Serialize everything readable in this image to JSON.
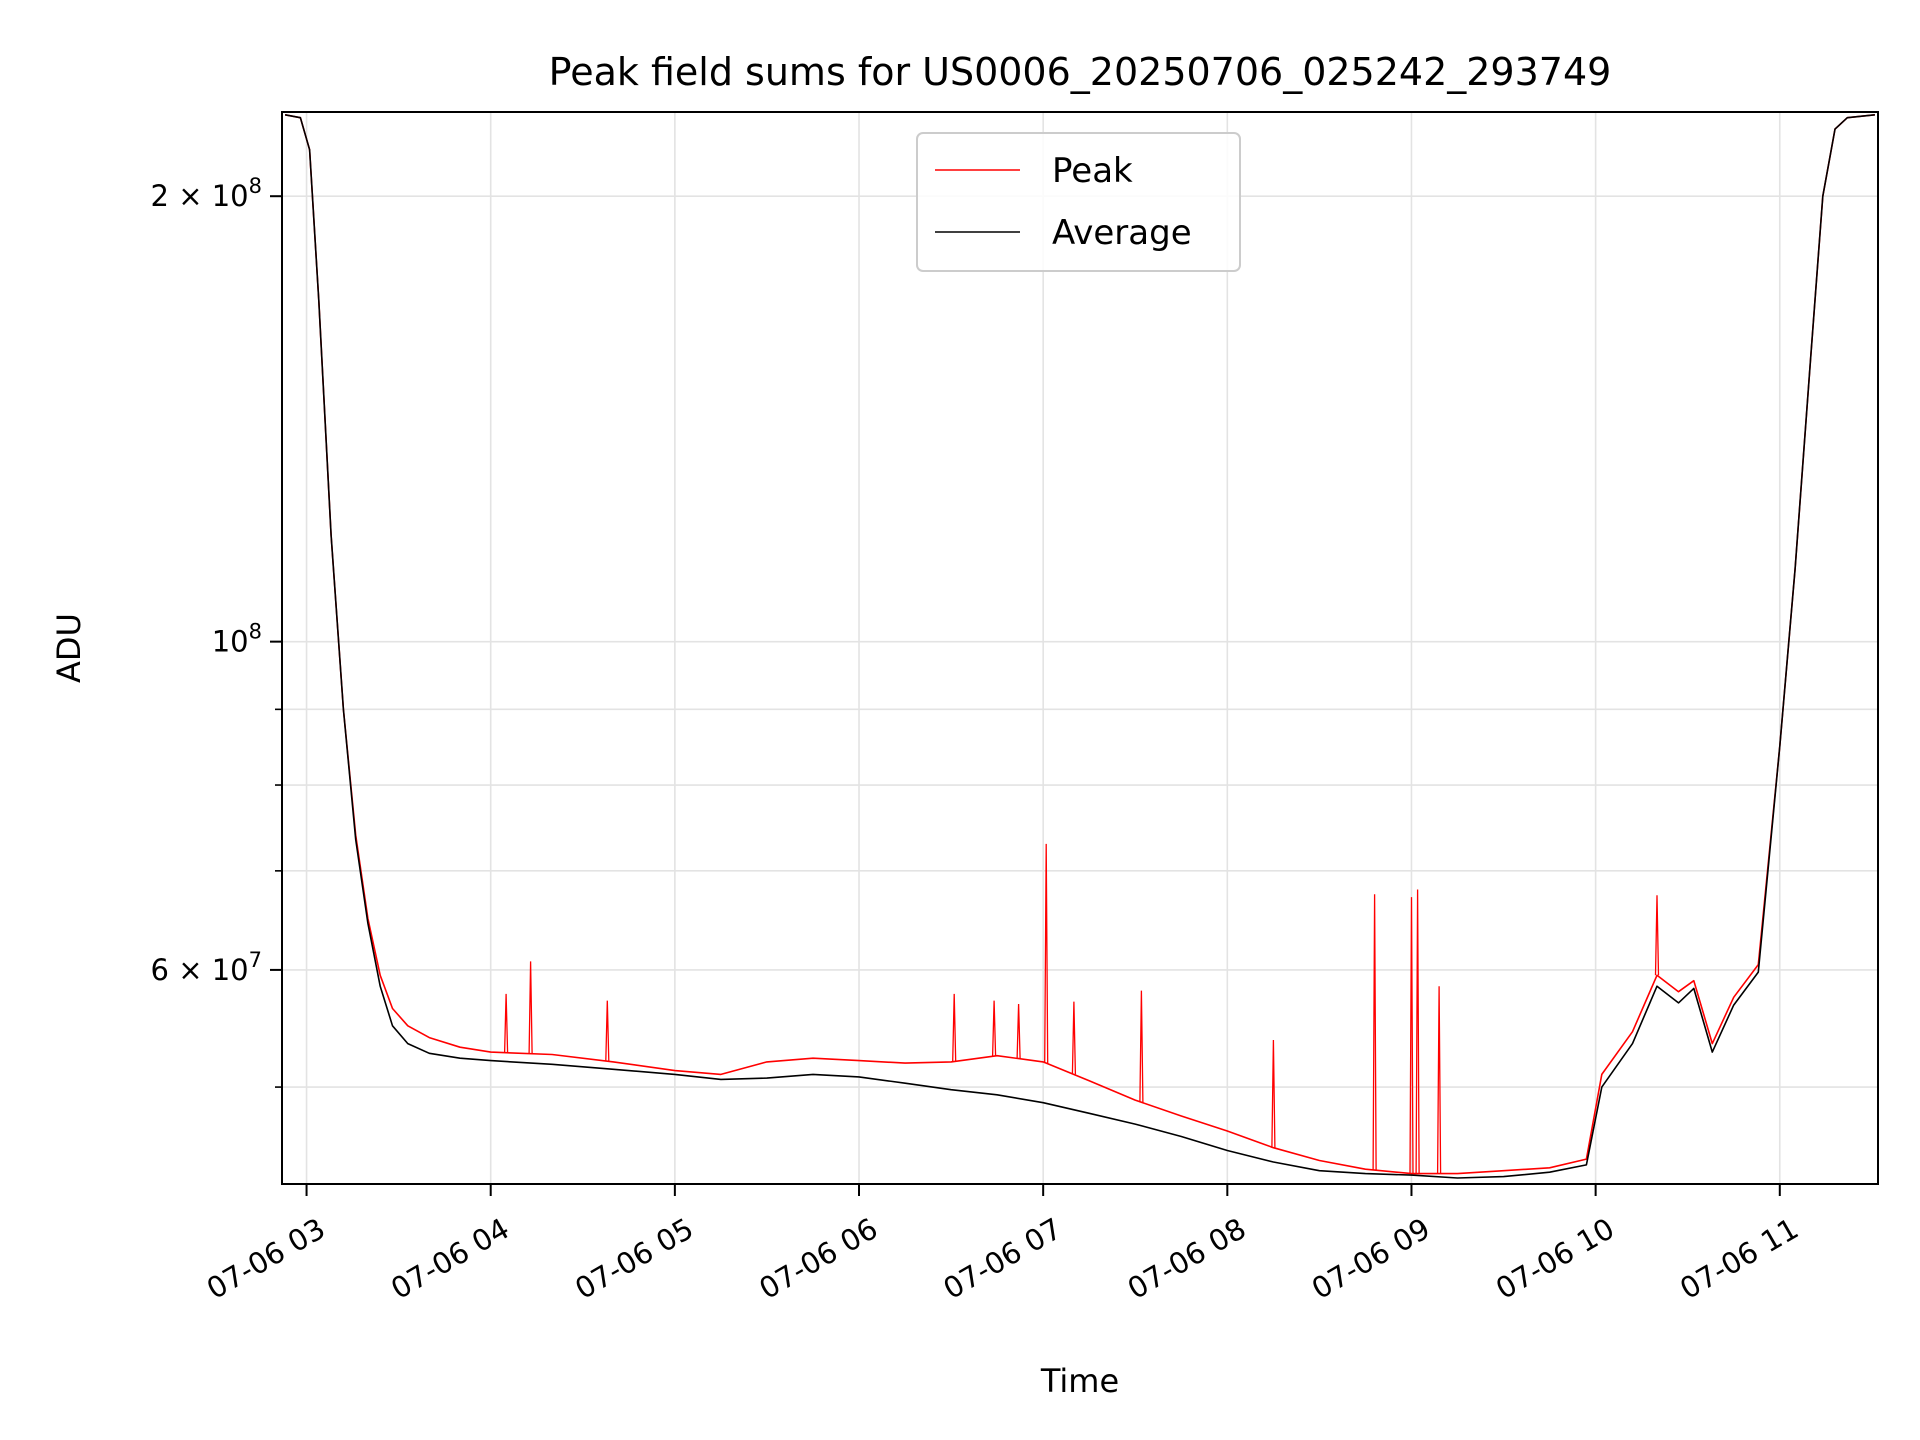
{
  "chart_data": {
    "type": "line",
    "title": "Peak field sums for US0006_20250706_025242_293749",
    "xlabel": "Time",
    "ylabel": "ADU",
    "y_scale": "log",
    "ylim": [
      43000000,
      228000000
    ],
    "xlim": [
      "2025-07-06 02:52",
      "2025-07-06 11:32"
    ],
    "grid": true,
    "legend_position": "upper center",
    "x_ticks": [
      {
        "value": "2025-07-06 03:00",
        "label": "07-06 03"
      },
      {
        "value": "2025-07-06 04:00",
        "label": "07-06 04"
      },
      {
        "value": "2025-07-06 05:00",
        "label": "07-06 05"
      },
      {
        "value": "2025-07-06 06:00",
        "label": "07-06 06"
      },
      {
        "value": "2025-07-06 07:00",
        "label": "07-06 07"
      },
      {
        "value": "2025-07-06 08:00",
        "label": "07-06 08"
      },
      {
        "value": "2025-07-06 09:00",
        "label": "07-06 09"
      },
      {
        "value": "2025-07-06 10:00",
        "label": "07-06 10"
      },
      {
        "value": "2025-07-06 11:00",
        "label": "07-06 11"
      }
    ],
    "y_major_ticks": [
      {
        "value": 60000000,
        "mantissa": "6",
        "exponent": "7"
      },
      {
        "value": 100000000,
        "mantissa": "",
        "exponent": "8"
      },
      {
        "value": 200000000,
        "mantissa": "2",
        "exponent": "8"
      }
    ],
    "y_tick_base": "10",
    "y_tick_times": "×",
    "y_minor_ticks": [
      50000000,
      70000000,
      80000000,
      90000000
    ],
    "series": [
      {
        "name": "Peak",
        "color": "#ff0000",
        "x": [
          "2025-07-06 02:53",
          "2025-07-06 02:58",
          "2025-07-06 03:01",
          "2025-07-06 03:04",
          "2025-07-06 03:08",
          "2025-07-06 03:12",
          "2025-07-06 03:16",
          "2025-07-06 03:20",
          "2025-07-06 03:24",
          "2025-07-06 03:28",
          "2025-07-06 03:33",
          "2025-07-06 03:40",
          "2025-07-06 03:50",
          "2025-07-06 04:00",
          "2025-07-06 04:20",
          "2025-07-06 04:40",
          "2025-07-06 05:00",
          "2025-07-06 05:15",
          "2025-07-06 05:30",
          "2025-07-06 05:45",
          "2025-07-06 06:00",
          "2025-07-06 06:15",
          "2025-07-06 06:30",
          "2025-07-06 06:45",
          "2025-07-06 07:00",
          "2025-07-06 07:15",
          "2025-07-06 07:30",
          "2025-07-06 07:45",
          "2025-07-06 08:00",
          "2025-07-06 08:15",
          "2025-07-06 08:30",
          "2025-07-06 08:45",
          "2025-07-06 09:00",
          "2025-07-06 09:15",
          "2025-07-06 09:30",
          "2025-07-06 09:45",
          "2025-07-06 09:57",
          "2025-07-06 10:02",
          "2025-07-06 10:12",
          "2025-07-06 10:20",
          "2025-07-06 10:27",
          "2025-07-06 10:32",
          "2025-07-06 10:38",
          "2025-07-06 10:45",
          "2025-07-06 10:53",
          "2025-07-06 11:00",
          "2025-07-06 11:05",
          "2025-07-06 11:10",
          "2025-07-06 11:14",
          "2025-07-06 11:18",
          "2025-07-06 11:22",
          "2025-07-06 11:31"
        ],
        "values": [
          227000000,
          226000000,
          215000000,
          170000000,
          118000000,
          90000000,
          74000000,
          65000000,
          59500000,
          56500000,
          55000000,
          54000000,
          53200000,
          52800000,
          52600000,
          52000000,
          51300000,
          51000000,
          52000000,
          52300000,
          52100000,
          51900000,
          52000000,
          52500000,
          52000000,
          50500000,
          49000000,
          47800000,
          46700000,
          45500000,
          44600000,
          44000000,
          43700000,
          43700000,
          43900000,
          44100000,
          44700000,
          51000000,
          54500000,
          59500000,
          58000000,
          59000000,
          53500000,
          57500000,
          60500000,
          85000000,
          112000000,
          155000000,
          200000000,
          222000000,
          226000000,
          227000000
        ],
        "spikes": [
          {
            "x": "2025-07-06 04:05",
            "value": 57800000
          },
          {
            "x": "2025-07-06 04:13",
            "value": 60800000
          },
          {
            "x": "2025-07-06 04:38",
            "value": 57200000
          },
          {
            "x": "2025-07-06 06:31",
            "value": 57800000
          },
          {
            "x": "2025-07-06 06:44",
            "value": 57200000
          },
          {
            "x": "2025-07-06 06:52",
            "value": 56900000
          },
          {
            "x": "2025-07-06 07:01",
            "value": 73000000
          },
          {
            "x": "2025-07-06 07:10",
            "value": 57100000
          },
          {
            "x": "2025-07-06 07:32",
            "value": 58100000
          },
          {
            "x": "2025-07-06 08:15",
            "value": 53800000
          },
          {
            "x": "2025-07-06 08:48",
            "value": 67500000
          },
          {
            "x": "2025-07-06 09:00",
            "value": 67200000
          },
          {
            "x": "2025-07-06 09:02",
            "value": 68000000
          },
          {
            "x": "2025-07-06 09:09",
            "value": 58500000
          },
          {
            "x": "2025-07-06 10:20",
            "value": 67400000
          }
        ]
      },
      {
        "name": "Average",
        "color": "#000000",
        "x": [
          "2025-07-06 02:53",
          "2025-07-06 02:58",
          "2025-07-06 03:01",
          "2025-07-06 03:04",
          "2025-07-06 03:08",
          "2025-07-06 03:12",
          "2025-07-06 03:16",
          "2025-07-06 03:20",
          "2025-07-06 03:24",
          "2025-07-06 03:28",
          "2025-07-06 03:33",
          "2025-07-06 03:40",
          "2025-07-06 03:50",
          "2025-07-06 04:00",
          "2025-07-06 04:20",
          "2025-07-06 04:40",
          "2025-07-06 05:00",
          "2025-07-06 05:15",
          "2025-07-06 05:30",
          "2025-07-06 05:45",
          "2025-07-06 06:00",
          "2025-07-06 06:15",
          "2025-07-06 06:30",
          "2025-07-06 06:45",
          "2025-07-06 07:00",
          "2025-07-06 07:15",
          "2025-07-06 07:30",
          "2025-07-06 07:45",
          "2025-07-06 08:00",
          "2025-07-06 08:15",
          "2025-07-06 08:30",
          "2025-07-06 08:45",
          "2025-07-06 09:00",
          "2025-07-06 09:15",
          "2025-07-06 09:30",
          "2025-07-06 09:45",
          "2025-07-06 09:57",
          "2025-07-06 10:02",
          "2025-07-06 10:12",
          "2025-07-06 10:20",
          "2025-07-06 10:27",
          "2025-07-06 10:32",
          "2025-07-06 10:38",
          "2025-07-06 10:45",
          "2025-07-06 10:53",
          "2025-07-06 11:00",
          "2025-07-06 11:05",
          "2025-07-06 11:10",
          "2025-07-06 11:14",
          "2025-07-06 11:18",
          "2025-07-06 11:22",
          "2025-07-06 11:31"
        ],
        "values": [
          227000000,
          226000000,
          215000000,
          170000000,
          118000000,
          90000000,
          73500000,
          64500000,
          58500000,
          55000000,
          53500000,
          52700000,
          52300000,
          52100000,
          51800000,
          51400000,
          51000000,
          50600000,
          50700000,
          51000000,
          50800000,
          50300000,
          49800000,
          49400000,
          48800000,
          48000000,
          47200000,
          46300000,
          45300000,
          44500000,
          43900000,
          43700000,
          43600000,
          43400000,
          43500000,
          43800000,
          44300000,
          50000000,
          53500000,
          58500000,
          57000000,
          58300000,
          52800000,
          56800000,
          59800000,
          85000000,
          112000000,
          155000000,
          200000000,
          222000000,
          226000000,
          227000000
        ]
      }
    ]
  }
}
